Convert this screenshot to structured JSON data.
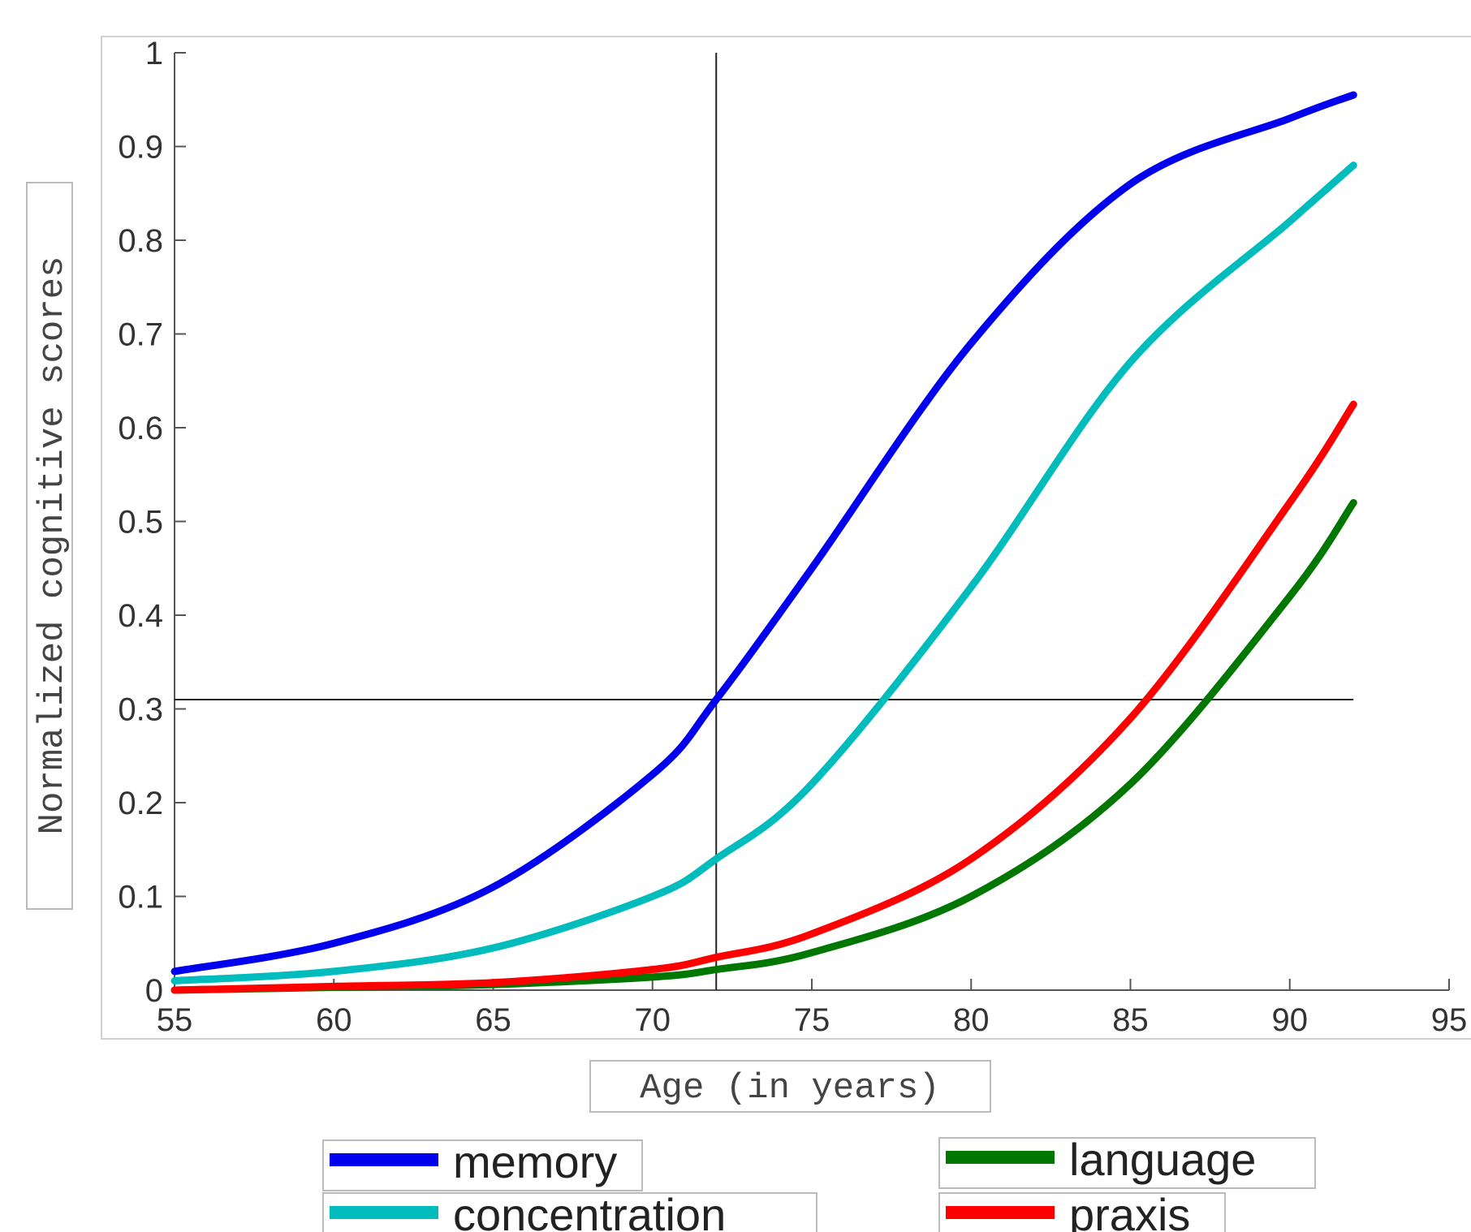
{
  "chart_data": {
    "type": "line",
    "xlabel": "Age (in years)",
    "ylabel": "Normalized cognitive scores",
    "xlim": [
      55,
      95
    ],
    "ylim": [
      0,
      1
    ],
    "x_ticks": [
      "55",
      "60",
      "65",
      "70",
      "75",
      "80",
      "85",
      "90",
      "95"
    ],
    "y_ticks": [
      "0",
      "0.1",
      "0.2",
      "0.3",
      "0.4",
      "0.5",
      "0.6",
      "0.7",
      "0.8",
      "0.9",
      "1"
    ],
    "grid": false,
    "legend_position": "bottom",
    "x": [
      55,
      60,
      65,
      70,
      72,
      75,
      80,
      85,
      90,
      92
    ],
    "series": [
      {
        "name": "memory",
        "color": "#0000ee",
        "values": [
          0.02,
          0.05,
          0.11,
          0.23,
          0.31,
          0.45,
          0.69,
          0.86,
          0.93,
          0.955
        ]
      },
      {
        "name": "concentration",
        "color": "#00bcbc",
        "values": [
          0.01,
          0.02,
          0.045,
          0.1,
          0.14,
          0.22,
          0.43,
          0.67,
          0.82,
          0.88
        ]
      },
      {
        "name": "language",
        "color": "#007700",
        "values": [
          0.0,
          0.003,
          0.006,
          0.014,
          0.022,
          0.04,
          0.1,
          0.22,
          0.42,
          0.52
        ]
      },
      {
        "name": "praxis",
        "color": "#ff0000",
        "values": [
          0.0,
          0.004,
          0.008,
          0.022,
          0.035,
          0.06,
          0.14,
          0.29,
          0.52,
          0.625
        ]
      }
    ],
    "reference_lines": {
      "x": 72,
      "y": 0.31
    }
  }
}
